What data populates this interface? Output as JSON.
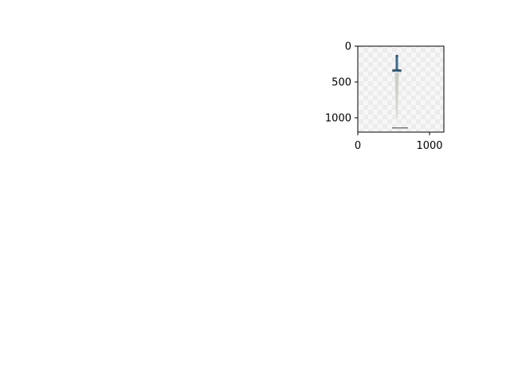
{
  "figure": {
    "background": "#ffffff",
    "axes_color": "#000000"
  },
  "image": {
    "content": "sword-icon",
    "extent_x": [
      0,
      1200
    ],
    "extent_y": [
      0,
      1200
    ],
    "y_inverted": true,
    "background_pattern": "checkerboard"
  },
  "axes": {
    "x_ticks": [
      {
        "value": 0,
        "label": "0"
      },
      {
        "value": 1000,
        "label": "1000"
      }
    ],
    "y_ticks": [
      {
        "value": 0,
        "label": "0"
      },
      {
        "value": 500,
        "label": "500"
      },
      {
        "value": 1000,
        "label": "1000"
      }
    ]
  }
}
